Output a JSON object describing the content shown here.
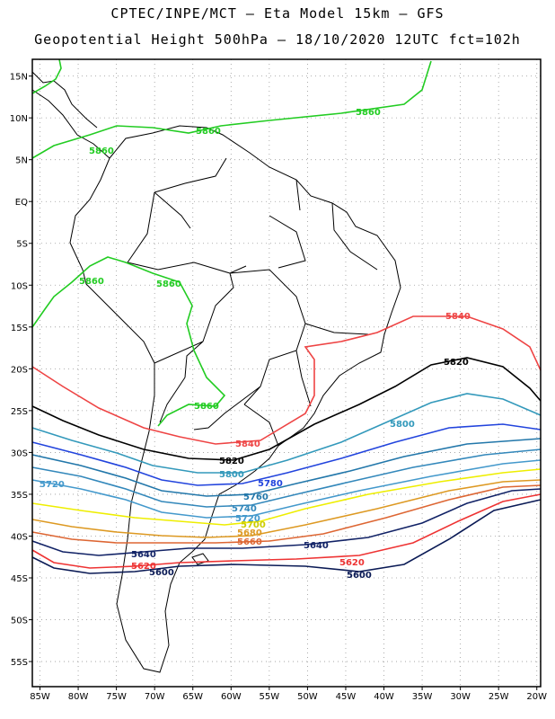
{
  "header": {
    "line1": "CPTEC/INPE/MCT –  Eta Model 15km – GFS",
    "line2": "Geopotential Height 500hPa – 18/10/2020 12UTC fct=102h"
  },
  "axes": {
    "lat_labels": [
      "15N",
      "10N",
      "5N",
      "EQ",
      "5S",
      "10S",
      "15S",
      "20S",
      "25S",
      "30S",
      "35S",
      "40S",
      "45S",
      "50S",
      "55S"
    ],
    "lat_values": [
      15,
      10,
      5,
      0,
      -5,
      -10,
      -15,
      -20,
      -25,
      -30,
      -35,
      -40,
      -45,
      -50,
      -55
    ],
    "lon_labels": [
      "85W",
      "80W",
      "75W",
      "70W",
      "65W",
      "60W",
      "55W",
      "50W",
      "45W",
      "40W",
      "35W",
      "30W",
      "25W",
      "20W"
    ],
    "lon_values": [
      -85,
      -80,
      -75,
      -70,
      -65,
      -60,
      -55,
      -50,
      -45,
      -40,
      -35,
      -30,
      -25,
      -20
    ]
  },
  "colors": {
    "c5860": "#22cc22",
    "c5840": "#ee4444",
    "c5820": "#000000",
    "c5800": "#3399bb",
    "c5780": "#2244dd",
    "c5760": "#2277aa",
    "c5740": "#3388bb",
    "c5720": "#4499cc",
    "c5700": "#eeee00",
    "c5680": "#dd9922",
    "c5660": "#dd6633",
    "c5640": "#112266",
    "c5620": "#ee3333",
    "c5600": "#0a1a55"
  },
  "contour_labels": {
    "l5860a": "5860",
    "l5860b": "5860",
    "l5860c": "5860",
    "l5860d": "5860",
    "l5860e": "5860",
    "l5860f": "5860",
    "l5840a": "5840",
    "l5840b": "5840",
    "l5820a": "5820",
    "l5820b": "5820",
    "l5800a": "5800",
    "l5800b": "5800",
    "l5780": "5780",
    "l5760": "5760",
    "l5740": "5740",
    "l5720a": "5720",
    "l5720b": "5720",
    "l5700": "5700",
    "l5680": "5680",
    "l5660": "5660",
    "l5640a": "5640",
    "l5640b": "5640",
    "l5620a": "5620",
    "l5620b": "5620",
    "l5600a": "5600",
    "l5600b": "5600"
  }
}
